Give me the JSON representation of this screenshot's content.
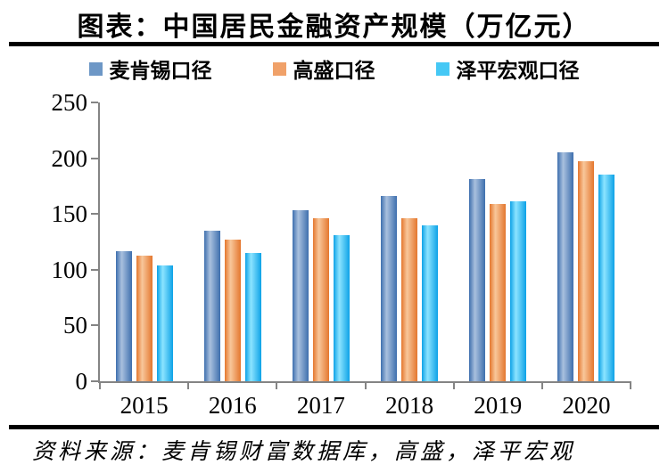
{
  "title": "图表：中国居民金融资产规模（万亿元）",
  "source_note": "资料来源：麦肯锡财富数据库，高盛，泽平宏观",
  "axis_color": "#848484",
  "rule_color": "#000000",
  "chart_data": {
    "type": "bar",
    "title": "图表：中国居民金融资产规模（万亿元）",
    "categories": [
      "2015",
      "2016",
      "2017",
      "2018",
      "2019",
      "2020"
    ],
    "series": [
      {
        "name": "麦肯锡口径",
        "swatch": "#6d97c6",
        "gradient_edge": "#3e6fae",
        "gradient_mid": "#a9c0de",
        "values": [
          117,
          135,
          153,
          166,
          181,
          205
        ]
      },
      {
        "name": "高盛口径",
        "swatch": "#f0a169",
        "gradient_edge": "#e4772e",
        "gradient_mid": "#f8c79b",
        "values": [
          113,
          127,
          146,
          146,
          159,
          197
        ]
      },
      {
        "name": "泽平宏观口径",
        "swatch": "#45c8f5",
        "gradient_edge": "#0da2e7",
        "gradient_mid": "#8ce4ff",
        "values": [
          104,
          115,
          131,
          140,
          161,
          185
        ]
      }
    ],
    "xlabel": "",
    "ylabel": "",
    "ylim": [
      0,
      250
    ],
    "yticks": [
      0,
      50,
      100,
      150,
      200,
      250
    ],
    "grid": false,
    "legend_position": "top"
  }
}
